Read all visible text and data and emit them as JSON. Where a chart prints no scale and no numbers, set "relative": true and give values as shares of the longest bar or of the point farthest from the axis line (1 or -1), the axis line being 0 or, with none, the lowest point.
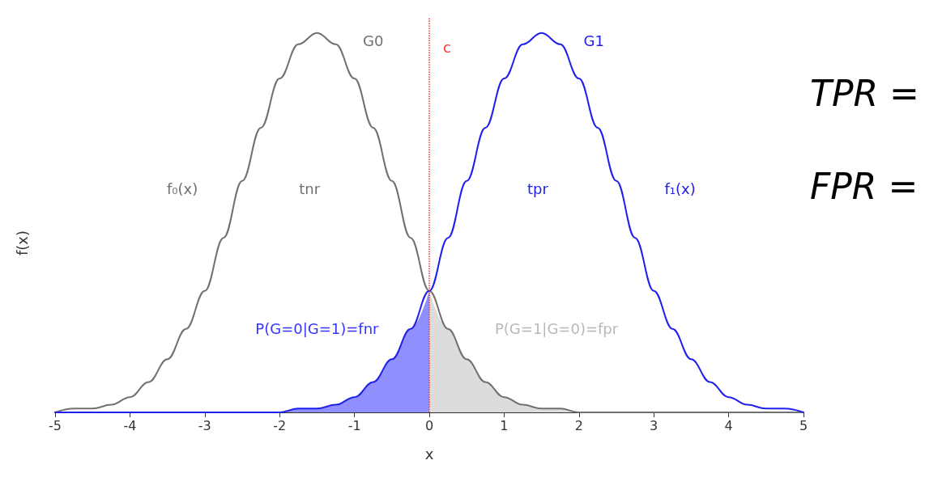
{
  "chart_data": {
    "type": "line",
    "relative": true,
    "xlabel": "x",
    "ylabel": "f(x)",
    "x": [
      -5,
      -4.75,
      -4.5,
      -4.25,
      -4,
      -3.75,
      -3.5,
      -3.25,
      -3,
      -2.75,
      -2.5,
      -2.25,
      -2,
      -1.75,
      -1.5,
      -1.25,
      -1,
      -0.75,
      -0.5,
      -0.25,
      0,
      0.25,
      0.5,
      0.75,
      1,
      1.25,
      1.5,
      1.75,
      2,
      2.25,
      2.5,
      2.75,
      3,
      3.25,
      3.5,
      3.75,
      4,
      4.25,
      4.5,
      4.75,
      5
    ],
    "series": [
      {
        "color": "#707070",
        "values": [
          0,
          0.01,
          0.01,
          0.02,
          0.04,
          0.08,
          0.14,
          0.22,
          0.32,
          0.46,
          0.61,
          0.75,
          0.88,
          0.97,
          1,
          0.97,
          0.88,
          0.75,
          0.61,
          0.46,
          0.32,
          0.22,
          0.14,
          0.08,
          0.04,
          0.02,
          0.01,
          0.01,
          0,
          0,
          0,
          0,
          0,
          0,
          0,
          0,
          0,
          0,
          0,
          0,
          0
        ]
      },
      {
        "color": "#2020ee",
        "values": [
          0,
          0,
          0,
          0,
          0,
          0,
          0,
          0,
          0,
          0,
          0,
          0,
          0,
          0.01,
          0.01,
          0.02,
          0.04,
          0.08,
          0.14,
          0.22,
          0.32,
          0.46,
          0.61,
          0.75,
          0.88,
          0.97,
          1,
          0.97,
          0.88,
          0.75,
          0.61,
          0.46,
          0.32,
          0.22,
          0.14,
          0.08,
          0.04,
          0.02,
          0.01,
          0.01,
          0
        ]
      },
      {
        "type": "area",
        "color": "#3333ff",
        "x": [
          -2,
          -1.75,
          -1.5,
          -1.25,
          -1,
          -0.75,
          -0.5,
          -0.25,
          0
        ],
        "values": [
          0,
          0.01,
          0.01,
          0.02,
          0.04,
          0.08,
          0.14,
          0.22,
          0.32
        ]
      },
      {
        "type": "area",
        "color": "#c0c0c0",
        "x": [
          0,
          0.25,
          0.5,
          0.75,
          1,
          1.25,
          1.5,
          1.75,
          2
        ],
        "values": [
          0.32,
          0.22,
          0.14,
          0.08,
          0.04,
          0.02,
          0.01,
          0.01,
          0
        ]
      }
    ],
    "xlim": [
      -5,
      5
    ],
    "xticks": [
      -5,
      -4,
      -3,
      -2,
      -1,
      0,
      1,
      2,
      3,
      4,
      5
    ],
    "ref_lines": [
      {
        "axis": "x",
        "value": 0,
        "label": "c",
        "color": "#ff3030",
        "line_style": "dotted"
      }
    ],
    "annotations": [
      "G0",
      "G1",
      "f₀(x)",
      "tnr",
      "tpr",
      "f₁(x)",
      "P(G=0|G=1)=fnr",
      "P(G=1|G=0)=fpr",
      "TPR =",
      "FPR ="
    ],
    "grid": false,
    "marker": "none",
    "line_style": "solid"
  }
}
